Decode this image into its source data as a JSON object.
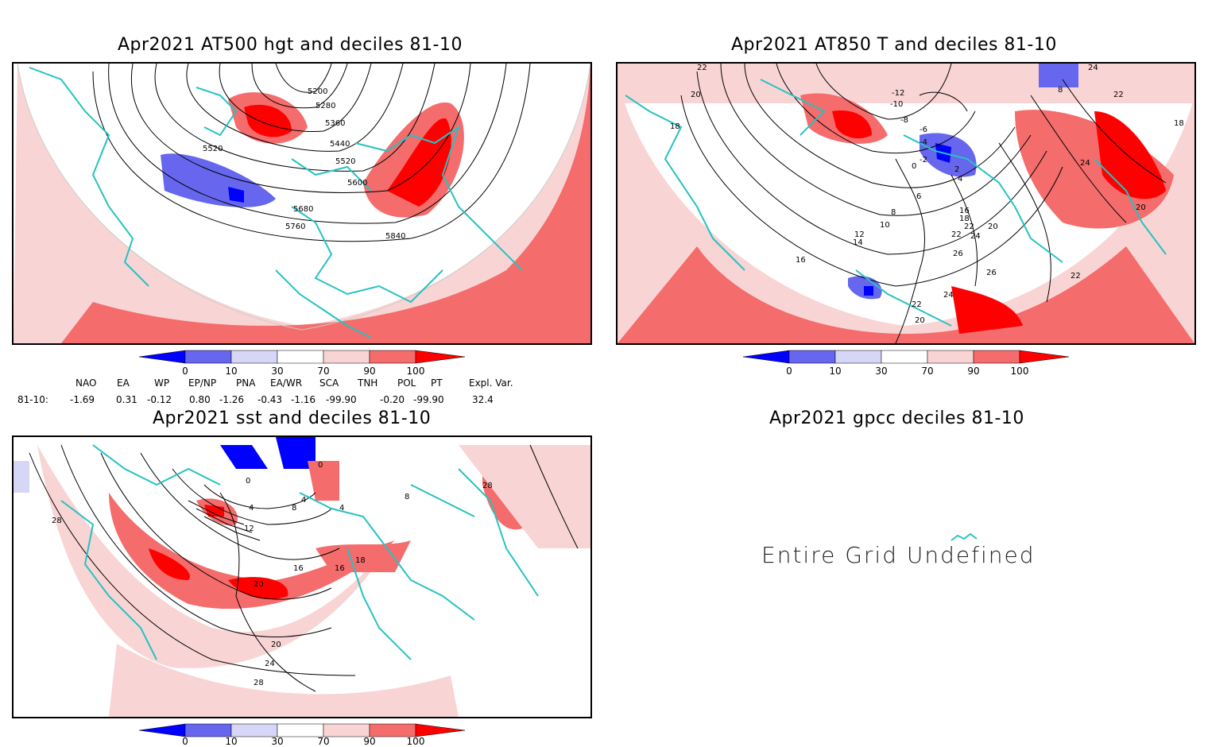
{
  "colors": {
    "below_10": "#0000ff",
    "d10_30": "#6666ee",
    "d30_50": "#d6d6f6",
    "d70_90": "#f9d4d4",
    "d90_100": "#f46c6c",
    "above_100": "#ff0000",
    "coast": "#26c2c2"
  },
  "panels": {
    "p1": {
      "title": "Apr2021 AT500 hgt and deciles 81-10",
      "contour_labels": [
        "5200",
        "5280",
        "5360",
        "5440",
        "5520",
        "5520",
        "5600",
        "5680",
        "5760",
        "5840"
      ]
    },
    "p2": {
      "title": "Apr2021 AT850 T and deciles 81-10",
      "contour_labels": [
        "22",
        "20",
        "18",
        "-12",
        "-10",
        "-8",
        "-6",
        "-4",
        "-2",
        "0",
        "2",
        "4",
        "6",
        "8",
        "10",
        "12",
        "14",
        "16",
        "16",
        "18",
        "20",
        "22",
        "22",
        "24",
        "24",
        "26",
        "26",
        "22",
        "24",
        "20",
        "22",
        "8",
        "24",
        "22",
        "18",
        "20"
      ]
    },
    "p3": {
      "title": "Apr2021 sst and deciles 81-10",
      "contour_labels": [
        "0",
        "0",
        "4",
        "8",
        "4",
        "12",
        "16",
        "16",
        "18",
        "20",
        "20",
        "24",
        "28",
        "28",
        "28",
        "4",
        "8"
      ]
    },
    "p4": {
      "title": "Apr2021 gpcc deciles 81-10",
      "message": "Entire Grid Undefined"
    }
  },
  "colorbar_labels": [
    "0",
    "10",
    "30",
    "70",
    "90",
    "100"
  ],
  "indices": {
    "headers": [
      "NAO",
      "EA",
      "WP",
      "EP/NP",
      "PNA",
      "EA/WR",
      "SCA",
      "TNH",
      "POL",
      "PT",
      "Expl. Var."
    ],
    "row_label": "81-10:",
    "values": [
      "-1.69",
      "0.31",
      "-0.12",
      "0.80",
      "-1.26",
      "-0.43",
      "-1.16",
      "-99.90",
      "-0.20",
      "-99.90",
      "32.4"
    ]
  }
}
